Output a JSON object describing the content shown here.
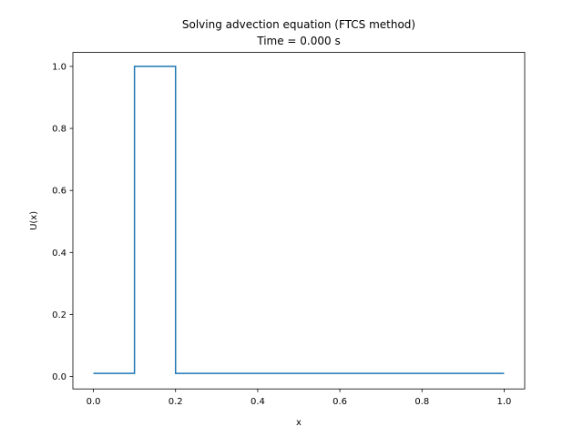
{
  "chart_data": {
    "type": "line",
    "title": "Solving advection equation (FTCS method)",
    "subtitle": "Time = 0.000 s",
    "xlabel": "x",
    "ylabel": "U(x)",
    "xlim": [
      -0.05,
      1.05
    ],
    "ylim": [
      -0.04,
      1.045
    ],
    "xticks": [
      0.0,
      0.2,
      0.4,
      0.6,
      0.8,
      1.0
    ],
    "xtick_labels": [
      "0.0",
      "0.2",
      "0.4",
      "0.6",
      "0.8",
      "1.0"
    ],
    "yticks": [
      0.0,
      0.2,
      0.4,
      0.6,
      0.8,
      1.0
    ],
    "ytick_labels": [
      "0.0",
      "0.2",
      "0.4",
      "0.6",
      "0.8",
      "1.0"
    ],
    "grid": false,
    "legend": "none",
    "series": [
      {
        "color": "#1f77b4",
        "x": [
          0.0,
          0.1,
          0.1,
          0.2,
          0.2,
          1.0
        ],
        "y": [
          0.01,
          0.01,
          1.0,
          1.0,
          0.01,
          0.01
        ]
      }
    ]
  }
}
